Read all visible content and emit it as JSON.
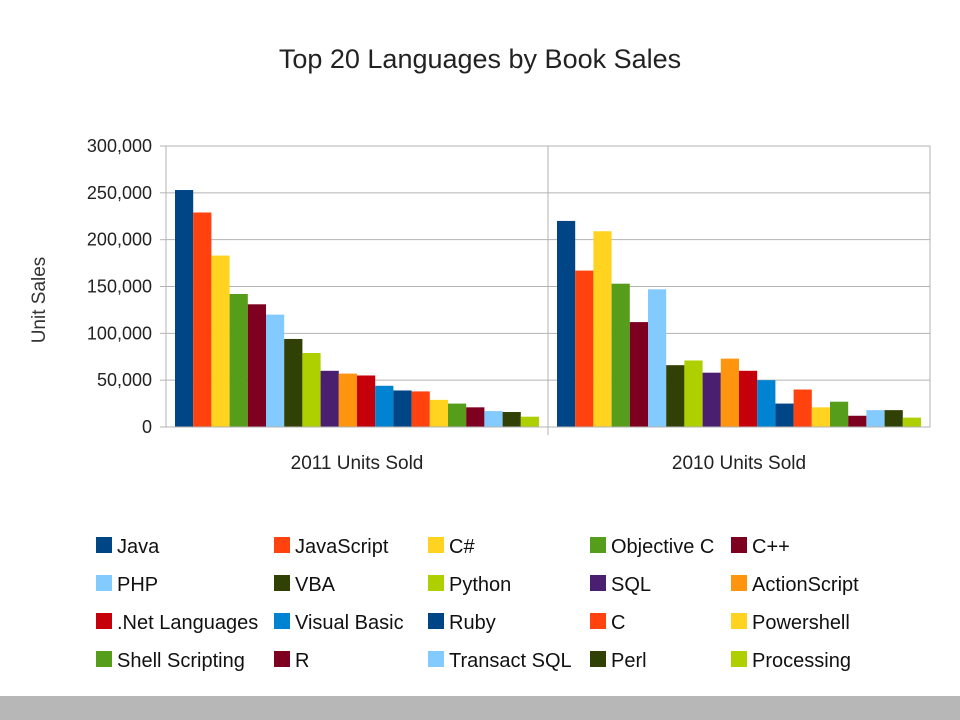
{
  "chart_data": {
    "type": "bar",
    "title": "Top 20 Languages by Book Sales",
    "ylabel": "Unit Sales",
    "ylim": [
      0,
      300000
    ],
    "yticks": [
      "0",
      "50,000",
      "100,000",
      "150,000",
      "200,000",
      "250,000",
      "300,000"
    ],
    "categories": [
      "2011 Units Sold",
      "2010 Units Sold"
    ],
    "grid": true,
    "legend_position": "bottom",
    "series": [
      {
        "name": "Java",
        "color": "#004586",
        "values": [
          253000,
          220000
        ]
      },
      {
        "name": "JavaScript",
        "color": "#ff420e",
        "values": [
          229000,
          167000
        ]
      },
      {
        "name": "C#",
        "color": "#ffd320",
        "values": [
          183000,
          209000
        ]
      },
      {
        "name": "Objective C",
        "color": "#579d1c",
        "values": [
          142000,
          153000
        ]
      },
      {
        "name": "C++",
        "color": "#7e0021",
        "values": [
          131000,
          112000
        ]
      },
      {
        "name": "PHP",
        "color": "#83caff",
        "values": [
          120000,
          147000
        ]
      },
      {
        "name": "VBA",
        "color": "#314004",
        "values": [
          94000,
          66000
        ]
      },
      {
        "name": "Python",
        "color": "#aecf00",
        "values": [
          79000,
          71000
        ]
      },
      {
        "name": "SQL",
        "color": "#4b1f6f",
        "values": [
          60000,
          58000
        ]
      },
      {
        "name": "ActionScript",
        "color": "#ff950e",
        "values": [
          57000,
          73000
        ]
      },
      {
        "name": ".Net Languages",
        "color": "#c5000b",
        "values": [
          55000,
          60000
        ]
      },
      {
        "name": "Visual Basic",
        "color": "#0084d1",
        "values": [
          44000,
          50000
        ]
      },
      {
        "name": "Ruby",
        "color": "#004586",
        "values": [
          39000,
          25000
        ]
      },
      {
        "name": "C",
        "color": "#ff420e",
        "values": [
          38000,
          40000
        ]
      },
      {
        "name": "Powershell",
        "color": "#ffd320",
        "values": [
          29000,
          21000
        ]
      },
      {
        "name": "Shell Scripting",
        "color": "#579d1c",
        "values": [
          25000,
          27000
        ]
      },
      {
        "name": "R",
        "color": "#7e0021",
        "values": [
          21000,
          12000
        ]
      },
      {
        "name": "Transact SQL",
        "color": "#83caff",
        "values": [
          17000,
          18000
        ]
      },
      {
        "name": "Perl",
        "color": "#314004",
        "values": [
          16000,
          18000
        ]
      },
      {
        "name": "Processing",
        "color": "#aecf00",
        "values": [
          11000,
          10000
        ]
      }
    ]
  }
}
